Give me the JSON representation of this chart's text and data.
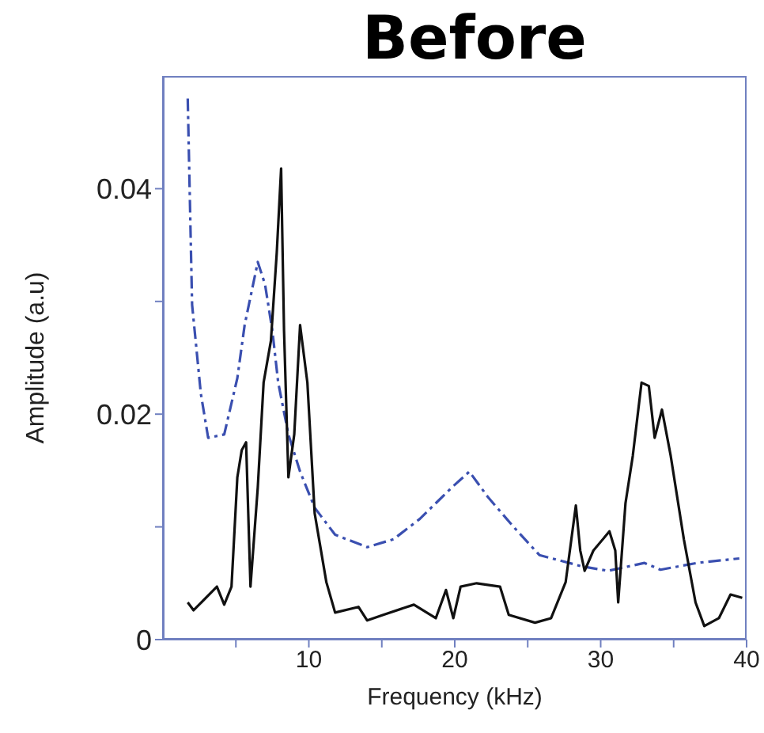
{
  "chart_data": {
    "type": "line",
    "title": "Before",
    "xlabel": "Frequency (kHz)",
    "ylabel": "Amplitude (a.u)",
    "xlim": [
      0,
      40
    ],
    "xticks": [
      {
        "value": 5,
        "label": null
      },
      10,
      {
        "value": 15,
        "label": null
      },
      20,
      {
        "value": 25,
        "label": null
      },
      30,
      {
        "value": 35,
        "label": null
      },
      40
    ],
    "ylim": [
      0,
      0.05
    ],
    "yticks": [
      0,
      {
        "value": 0.01,
        "label": null
      },
      0.02,
      {
        "value": 0.03,
        "label": null
      },
      0.04
    ],
    "marker": "none",
    "series": [
      {
        "color": "#3a4fb0",
        "line_style": "dashed",
        "x": [
          1.7,
          2.0,
          2.6,
          3.1,
          4.2,
          5.1,
          5.6,
          6.5,
          7.0,
          7.5,
          7.9,
          8.6,
          9.4,
          10.4,
          11.8,
          14.0,
          15.8,
          17.6,
          19.8,
          21.0,
          22.3,
          24.1,
          25.8,
          28.7,
          30.5,
          33.0,
          34.1,
          36.6,
          39.5
        ],
        "values": [
          0.048,
          0.0297,
          0.0218,
          0.0179,
          0.0182,
          0.0232,
          0.0279,
          0.0335,
          0.0315,
          0.0274,
          0.0228,
          0.0182,
          0.0149,
          0.0117,
          0.0093,
          0.0082,
          0.0089,
          0.0107,
          0.0135,
          0.0149,
          0.0126,
          0.0099,
          0.0075,
          0.0065,
          0.0061,
          0.0068,
          0.0062,
          0.0068,
          0.0072
        ]
      },
      {
        "color": "#111111",
        "line_style": "solid",
        "x": [
          1.7,
          2.1,
          3.7,
          4.2,
          4.7,
          5.1,
          5.4,
          5.7,
          6.0,
          6.5,
          6.9,
          7.4,
          7.8,
          8.1,
          8.3,
          8.6,
          9.0,
          9.4,
          9.9,
          10.4,
          11.2,
          11.8,
          13.4,
          14.0,
          15.1,
          17.2,
          18.7,
          19.4,
          19.9,
          20.4,
          21.5,
          23.1,
          23.7,
          25.5,
          26.6,
          27.6,
          28.3,
          28.6,
          28.9,
          29.5,
          30.6,
          31.0,
          31.2,
          31.7,
          32.2,
          32.8,
          33.3,
          33.7,
          34.2,
          34.8,
          35.7,
          36.5,
          37.1,
          38.1,
          38.9,
          39.7
        ],
        "values": [
          0.0033,
          0.0026,
          0.0047,
          0.0031,
          0.0047,
          0.0144,
          0.0168,
          0.0175,
          0.0047,
          0.0135,
          0.0228,
          0.0265,
          0.0343,
          0.0418,
          0.0274,
          0.0144,
          0.0182,
          0.0279,
          0.0228,
          0.0112,
          0.0051,
          0.0024,
          0.0029,
          0.0017,
          0.0022,
          0.0031,
          0.0019,
          0.0044,
          0.0019,
          0.0047,
          0.005,
          0.0047,
          0.0022,
          0.0015,
          0.0019,
          0.0051,
          0.0119,
          0.0079,
          0.0061,
          0.0079,
          0.0096,
          0.0079,
          0.0033,
          0.0121,
          0.0163,
          0.0228,
          0.0225,
          0.0179,
          0.0204,
          0.0163,
          0.0089,
          0.0033,
          0.0012,
          0.0019,
          0.004,
          0.0037
        ]
      }
    ]
  }
}
